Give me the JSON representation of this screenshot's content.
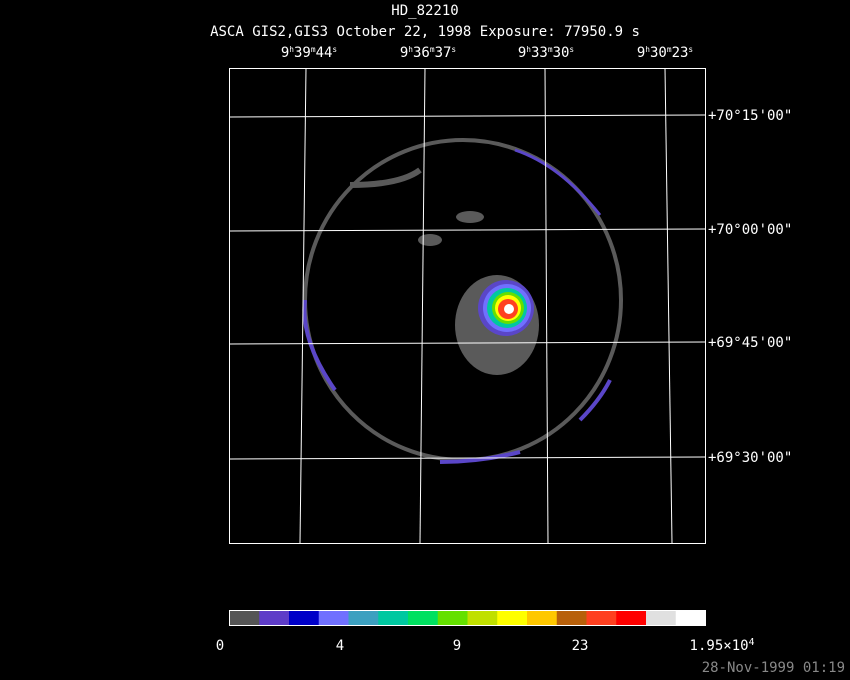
{
  "title": "HD_82210",
  "subtitle": "ASCA GIS2,GIS3 October 22, 1998 Exposure: 77950.9 s",
  "ra_labels": [
    [
      "9",
      "h",
      "39",
      "m",
      "44",
      "s"
    ],
    [
      "9",
      "h",
      "36",
      "m",
      "37",
      "s"
    ],
    [
      "9",
      "h",
      "33",
      "m",
      "30",
      "s"
    ],
    [
      "9",
      "h",
      "30",
      "m",
      "23",
      "s"
    ]
  ],
  "dec_labels": [
    "+70°15'00\"",
    "+70°00'00\"",
    "+69°45'00\"",
    "+69°30'00\""
  ],
  "colorbar_labels": [
    [
      "0"
    ],
    [
      "4"
    ],
    [
      "9"
    ],
    [
      "23"
    ],
    [
      "1.95×10",
      "4"
    ]
  ],
  "footer": "28-Nov-1999 01:19"
}
